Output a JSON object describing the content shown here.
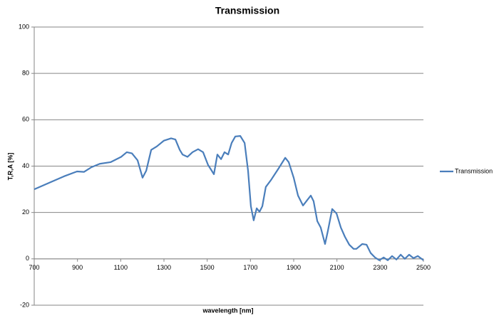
{
  "chart_data": {
    "type": "line",
    "title": "Transmission",
    "x_label": "wavelength [nm]",
    "y_label": "T,R,A [%]",
    "x": [
      700,
      838,
      898,
      930,
      964,
      1003,
      1053,
      1102,
      1128,
      1152,
      1178,
      1201,
      1218,
      1241,
      1267,
      1300,
      1333,
      1353,
      1373,
      1386,
      1409,
      1432,
      1458,
      1481,
      1504,
      1521,
      1531,
      1547,
      1564,
      1580,
      1597,
      1613,
      1630,
      1653,
      1673,
      1689,
      1702,
      1715,
      1729,
      1742,
      1755,
      1771,
      1795,
      1828,
      1861,
      1877,
      1900,
      1920,
      1943,
      1959,
      1979,
      1992,
      2009,
      2025,
      2045,
      2058,
      2078,
      2098,
      2118,
      2137,
      2157,
      2177,
      2190,
      2217,
      2237,
      2256,
      2276,
      2296,
      2316,
      2335,
      2355,
      2375,
      2395,
      2414,
      2434,
      2454,
      2474,
      2500
    ],
    "series": [
      {
        "name": "Transmission",
        "color": "#4a7ebb",
        "values": [
          30,
          35.6,
          37.7,
          37.5,
          39.5,
          41,
          41.7,
          44,
          46,
          45.5,
          42.5,
          35,
          38,
          47,
          48.5,
          51,
          52,
          51.5,
          47,
          45,
          44,
          46,
          47.3,
          46,
          40.5,
          38,
          36.5,
          45,
          43,
          46,
          45,
          50,
          52.8,
          53,
          50,
          38,
          22.7,
          16.6,
          21.8,
          20.3,
          22.7,
          31,
          34,
          38.7,
          43.6,
          41.7,
          35,
          27.3,
          23,
          24.9,
          27.3,
          24.9,
          16.3,
          13.5,
          6.4,
          12,
          21.5,
          19.6,
          13.5,
          9.5,
          6.1,
          4.3,
          4.3,
          6.4,
          6.1,
          2.5,
          0.6,
          -0.6,
          0.6,
          -0.6,
          1.2,
          -0.3,
          1.8,
          0,
          1.8,
          0.3,
          1.2,
          -0.6
        ]
      }
    ],
    "xlim": [
      700,
      2500
    ],
    "xticks": [
      700,
      900,
      1100,
      1300,
      1500,
      1700,
      1900,
      2100,
      2300,
      2500
    ],
    "ylim": [
      -20,
      100
    ],
    "yticks": [
      -20,
      0,
      20,
      40,
      60,
      80,
      100
    ],
    "grid": true,
    "legend": "right"
  }
}
